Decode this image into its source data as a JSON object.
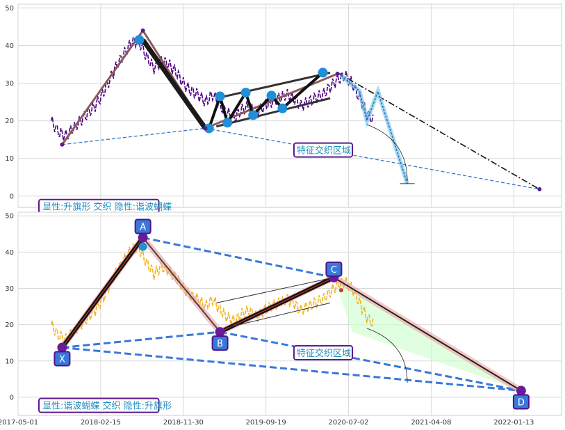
{
  "chart_data": [
    {
      "type": "line",
      "panel": "top",
      "ylim": [
        -3,
        51
      ],
      "yticks": [
        0,
        10,
        20,
        30,
        40,
        50
      ],
      "legend": "显性:升旗形 交织 隐性:谐波蝴蝶",
      "annotation": "特征交织区域",
      "series": [
        {
          "style": "price",
          "color": "#4b0082",
          "values": [
            [
              0,
              20
            ],
            [
              2,
              17
            ],
            [
              4,
              16
            ],
            [
              6,
              18
            ],
            [
              8,
              20
            ],
            [
              10,
              22
            ],
            [
              12,
              24
            ],
            [
              14,
              27
            ],
            [
              16,
              31
            ],
            [
              18,
              35
            ],
            [
              20,
              38
            ],
            [
              22,
              41
            ],
            [
              24,
              41
            ],
            [
              26,
              37
            ],
            [
              28,
              34
            ],
            [
              30,
              36
            ],
            [
              32,
              35
            ],
            [
              34,
              33
            ],
            [
              36,
              30
            ],
            [
              38,
              28
            ],
            [
              40,
              27
            ],
            [
              42,
              25
            ],
            [
              44,
              27
            ],
            [
              46,
              24
            ],
            [
              48,
              22
            ],
            [
              50,
              21
            ],
            [
              52,
              23
            ],
            [
              54,
              24
            ],
            [
              56,
              22
            ],
            [
              58,
              24
            ],
            [
              60,
              25
            ],
            [
              62,
              26
            ],
            [
              64,
              27
            ],
            [
              66,
              26
            ],
            [
              68,
              24
            ],
            [
              70,
              25
            ],
            [
              72,
              26
            ],
            [
              74,
              27
            ],
            [
              76,
              29
            ],
            [
              78,
              31
            ],
            [
              80,
              32
            ],
            [
              82,
              30
            ],
            [
              84,
              26
            ],
            [
              86,
              22
            ],
            [
              88,
              20
            ]
          ]
        }
      ],
      "pivots": {
        "values": [
          [
            3,
            13.7
          ],
          [
            25,
            44
          ],
          [
            42,
            18
          ],
          [
            78,
            32.5
          ],
          [
            133,
            1.8
          ]
        ]
      },
      "flag_points": {
        "values": [
          [
            24,
            41.5
          ],
          [
            43,
            18
          ],
          [
            46,
            26.5
          ],
          [
            48,
            19.5
          ],
          [
            53,
            27.5
          ],
          [
            55,
            21.5
          ],
          [
            60,
            26.7
          ],
          [
            63,
            23.3
          ],
          [
            74,
            32.8
          ]
        ]
      },
      "projection": {
        "values": [
          [
            79,
            32
          ],
          [
            84,
            27.9
          ],
          [
            86,
            20
          ],
          [
            89,
            27.8
          ],
          [
            97,
            3.3
          ]
        ]
      },
      "channel": {
        "values": [
          [
            45,
            26
          ],
          [
            76,
            32.8
          ],
          [
            45,
            18.5
          ],
          [
            76,
            26
          ]
        ]
      },
      "trend_dashed": {
        "values": [
          [
            3,
            13.7
          ],
          [
            42,
            18
          ],
          [
            133,
            1.8
          ]
        ]
      },
      "trend_dashdot": {
        "values": [
          [
            78,
            32.8
          ],
          [
            133,
            1.8
          ]
        ]
      }
    },
    {
      "type": "line",
      "panel": "bottom",
      "ylim": [
        -5,
        51
      ],
      "yticks": [
        0,
        10,
        20,
        30,
        40,
        50
      ],
      "xlim": [
        -9,
        139
      ],
      "xticks": [
        "2017-05-01",
        "2018-02-15",
        "2018-11-30",
        "2019-09-19",
        "2020-07-02",
        "2021-04-08",
        "2022-01-13"
      ],
      "xtick_positions": [
        -9,
        13.5,
        36,
        58.5,
        81,
        103.5,
        126
      ],
      "legend": "显性:谐波蝴蝶 交织 隐性:升旗形",
      "annotation": "特征交织区域",
      "series": [
        {
          "style": "price",
          "color": "#f0b429",
          "values": [
            [
              0,
              20
            ],
            [
              2,
              17
            ],
            [
              4,
              16
            ],
            [
              6,
              18
            ],
            [
              8,
              20
            ],
            [
              10,
              22
            ],
            [
              12,
              24
            ],
            [
              14,
              27
            ],
            [
              16,
              31
            ],
            [
              18,
              35
            ],
            [
              20,
              38
            ],
            [
              22,
              41
            ],
            [
              24,
              41
            ],
            [
              26,
              37
            ],
            [
              28,
              34
            ],
            [
              30,
              36
            ],
            [
              32,
              35
            ],
            [
              34,
              33
            ],
            [
              36,
              30
            ],
            [
              38,
              28
            ],
            [
              40,
              27
            ],
            [
              42,
              25
            ],
            [
              44,
              27
            ],
            [
              46,
              24
            ],
            [
              48,
              22
            ],
            [
              50,
              21
            ],
            [
              52,
              23
            ],
            [
              54,
              24
            ],
            [
              56,
              22
            ],
            [
              58,
              24
            ],
            [
              60,
              25
            ],
            [
              62,
              26
            ],
            [
              64,
              27
            ],
            [
              66,
              26
            ],
            [
              68,
              24
            ],
            [
              70,
              25
            ],
            [
              72,
              26
            ],
            [
              74,
              27
            ],
            [
              76,
              29
            ],
            [
              78,
              31
            ],
            [
              80,
              32
            ],
            [
              82,
              30
            ],
            [
              84,
              26
            ],
            [
              86,
              22
            ],
            [
              88,
              20
            ]
          ]
        }
      ],
      "points": [
        {
          "label": "X",
          "x": 3,
          "y": 13.7
        },
        {
          "label": "A",
          "x": 25,
          "y": 44
        },
        {
          "label": "B",
          "x": 46,
          "y": 18
        },
        {
          "label": "C",
          "x": 77,
          "y": 33
        },
        {
          "label": "D",
          "x": 128,
          "y": 1.8
        }
      ]
    }
  ]
}
